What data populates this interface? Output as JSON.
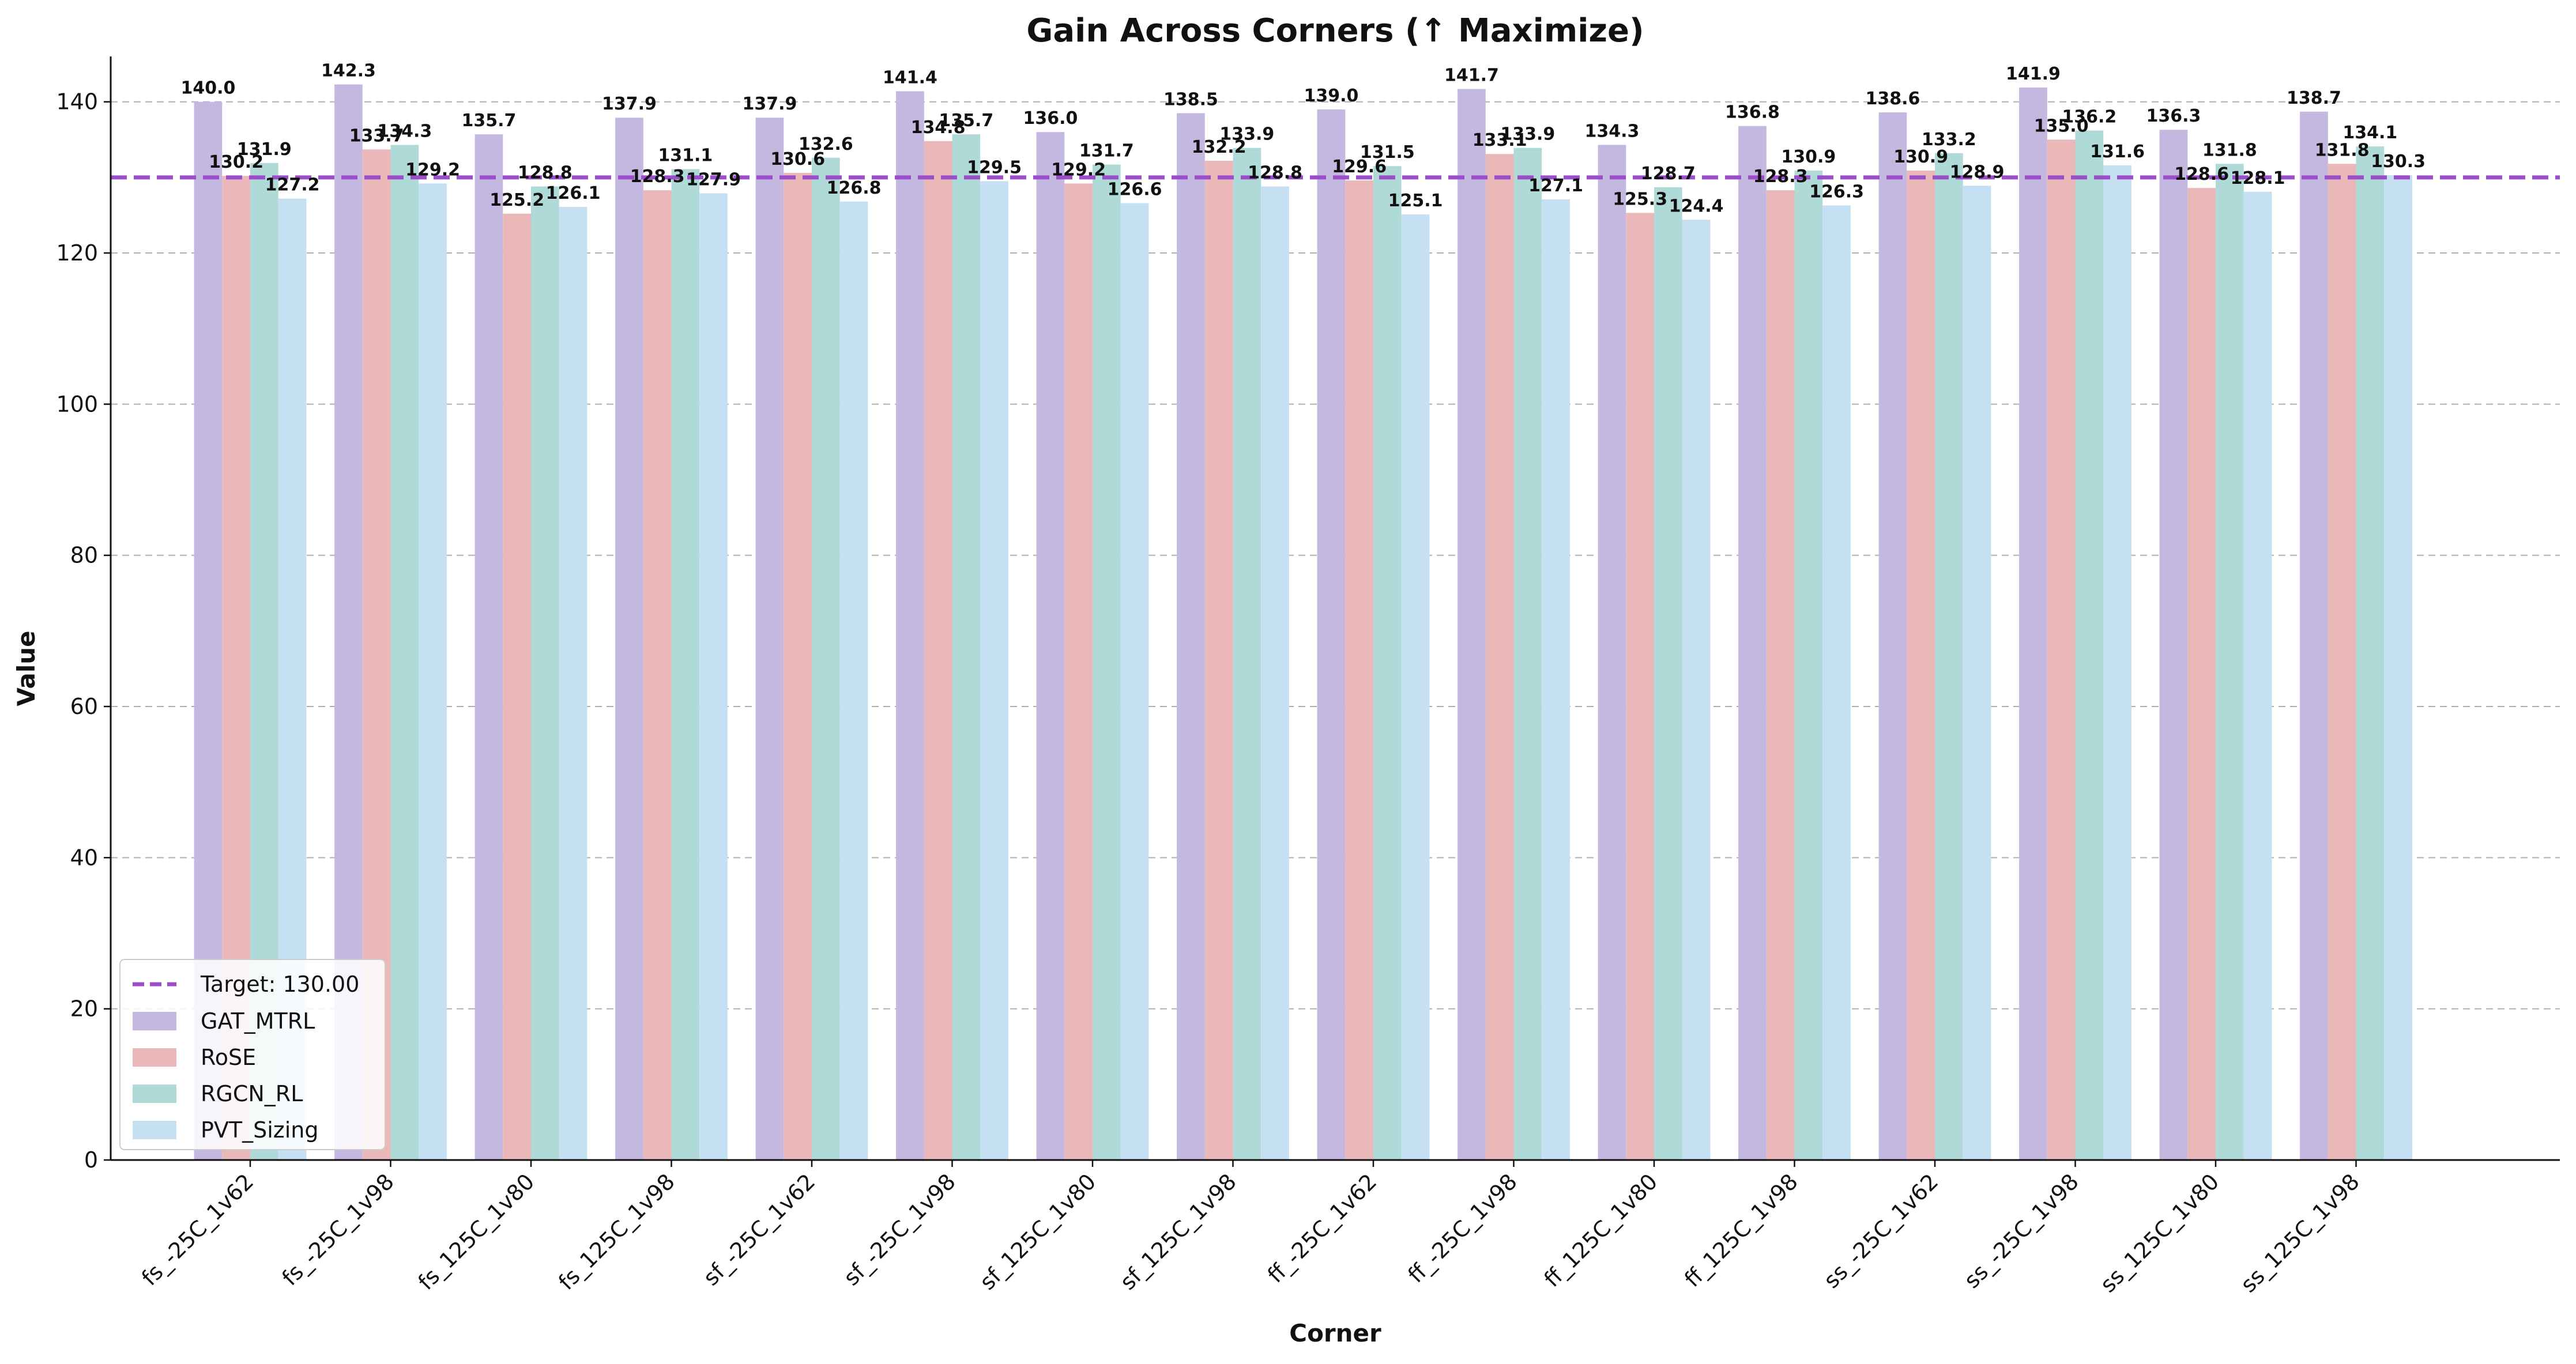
{
  "chart_data": {
    "type": "bar",
    "title": "Gain Across Corners (↑ Maximize)",
    "xlabel": "Corner",
    "ylabel": "Value",
    "ylim": [
      0,
      146
    ],
    "yticks": [
      0,
      20,
      40,
      60,
      80,
      100,
      120,
      140
    ],
    "grid": "y-dashed",
    "legend_position": "lower-left",
    "categories": [
      "fs_-25C_1v62",
      "fs_-25C_1v98",
      "fs_125C_1v80",
      "fs_125C_1v98",
      "sf_-25C_1v62",
      "sf_-25C_1v98",
      "sf_125C_1v80",
      "sf_125C_1v98",
      "ff_-25C_1v62",
      "ff_-25C_1v98",
      "ff_125C_1v80",
      "ff_125C_1v98",
      "ss_-25C_1v62",
      "ss_-25C_1v98",
      "ss_125C_1v80",
      "ss_125C_1v98"
    ],
    "target": {
      "label": "Target: 130.00",
      "value": 130.0,
      "color": "#9b4dca"
    },
    "series": [
      {
        "name": "GAT_MTRL",
        "color": "#c5b8e0",
        "values": [
          140.0,
          142.3,
          135.7,
          137.9,
          137.9,
          141.4,
          136.0,
          138.5,
          139.0,
          141.7,
          134.3,
          136.8,
          138.6,
          141.9,
          136.3,
          138.7
        ]
      },
      {
        "name": "RoSE",
        "color": "#eab8b8",
        "values": [
          130.2,
          133.7,
          125.2,
          128.3,
          130.6,
          134.8,
          129.2,
          132.2,
          129.6,
          133.1,
          125.3,
          128.3,
          130.9,
          135.0,
          128.6,
          131.8
        ]
      },
      {
        "name": "RGCN_RL",
        "color": "#b0dad7",
        "values": [
          131.9,
          134.3,
          128.8,
          131.1,
          132.6,
          135.7,
          131.7,
          133.9,
          131.5,
          133.9,
          128.7,
          130.9,
          133.2,
          136.2,
          131.8,
          134.1
        ]
      },
      {
        "name": "PVT_Sizing",
        "color": "#c6e0f3",
        "values": [
          127.2,
          129.2,
          126.1,
          127.9,
          126.8,
          129.5,
          126.6,
          128.8,
          125.1,
          127.1,
          124.4,
          126.3,
          128.9,
          131.6,
          128.1,
          130.3
        ]
      }
    ]
  }
}
